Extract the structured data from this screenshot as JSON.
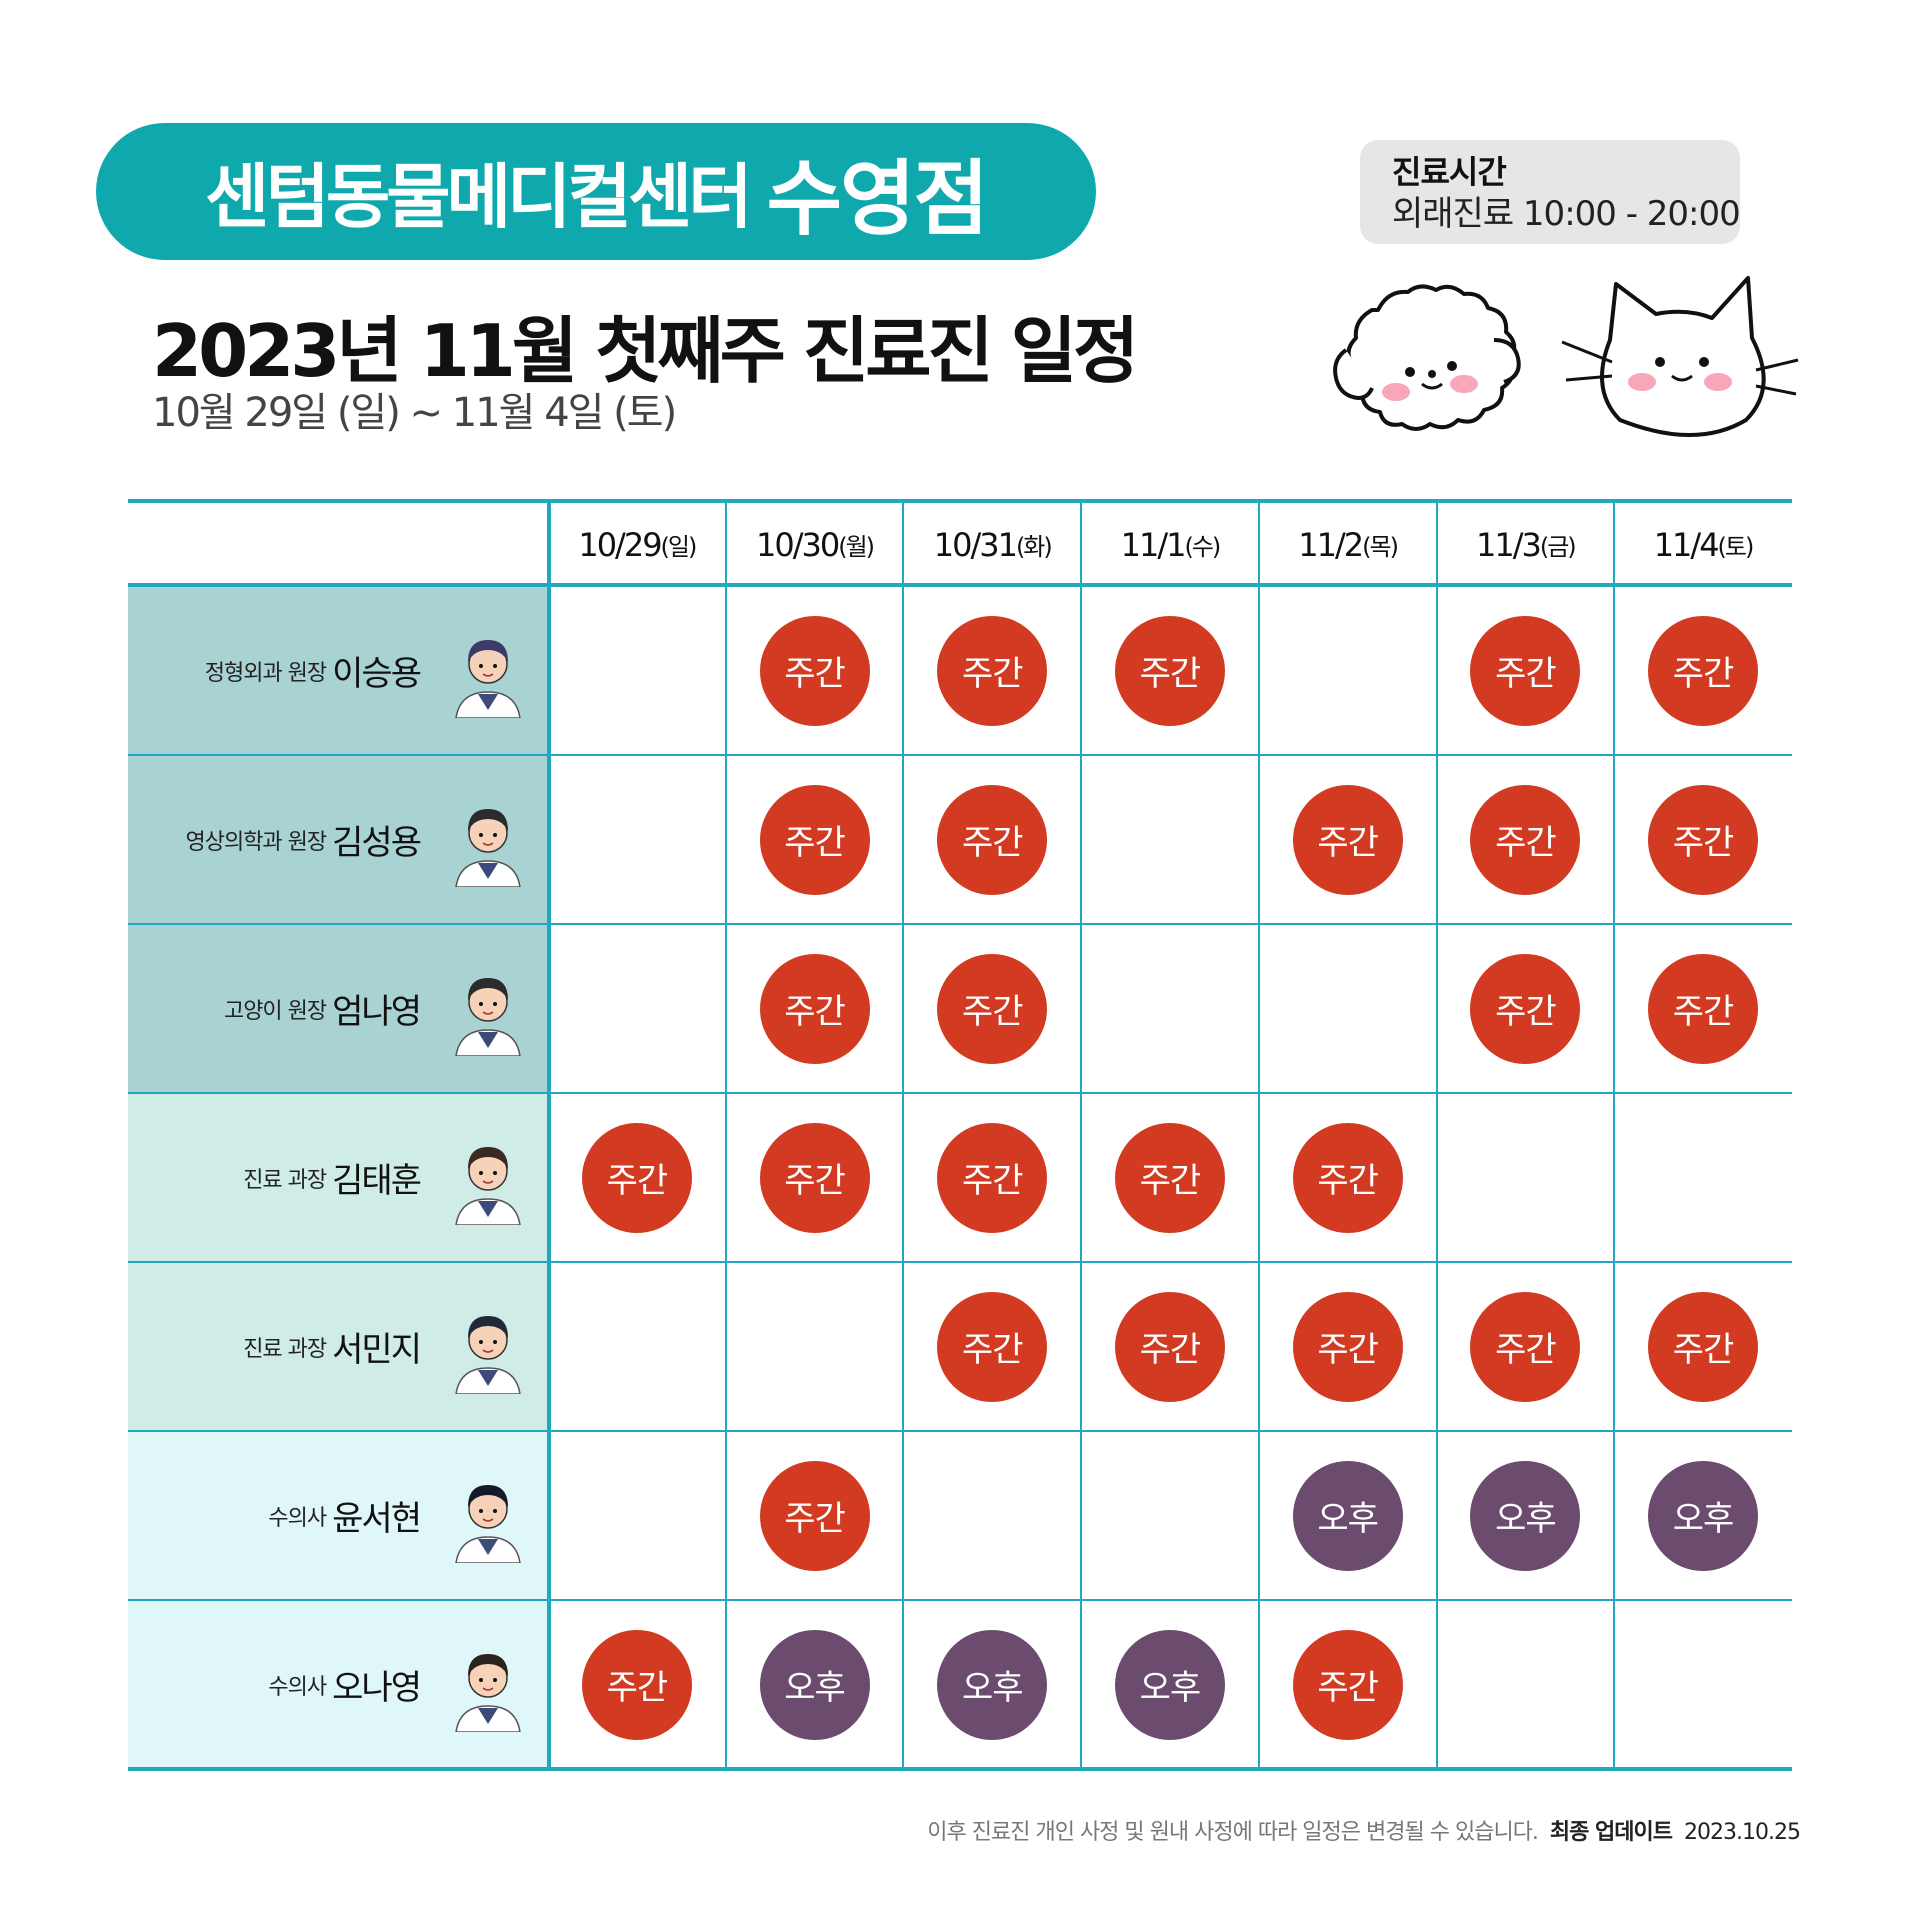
{
  "header": {
    "brand_name": "센텀동물메디컬센터",
    "branch": "수영점",
    "title": "2023년 11월 첫째주 진료진 일정",
    "subtitle": "10월 29일 (일) ~ 11월 4일 (토)"
  },
  "hours": {
    "title": "진료시간",
    "line": "외래진료 10:00 - 20:00"
  },
  "table": {
    "dates": [
      {
        "date": "10/29",
        "dow": "(일)"
      },
      {
        "date": "10/30",
        "dow": "(월)"
      },
      {
        "date": "10/31",
        "dow": "(화)"
      },
      {
        "date": "11/1",
        "dow": "(수)"
      },
      {
        "date": "11/2",
        "dow": "(목)"
      },
      {
        "date": "11/3",
        "dow": "(금)"
      },
      {
        "date": "11/4",
        "dow": "(토)"
      }
    ],
    "rows": [
      {
        "role": "정형외과 원장",
        "name": "이승용",
        "bg": "#a9d2d3",
        "avatar": "male-glasses",
        "cells": [
          "",
          "주간",
          "주간",
          "주간",
          "",
          "주간",
          "주간"
        ]
      },
      {
        "role": "영상의학과 원장",
        "name": "김성용",
        "bg": "#a9d2d3",
        "avatar": "male-dark",
        "cells": [
          "",
          "주간",
          "주간",
          "",
          "주간",
          "주간",
          "주간"
        ]
      },
      {
        "role": "고양이 원장",
        "name": "엄나영",
        "bg": "#a9d2d3",
        "avatar": "female-bun",
        "cells": [
          "",
          "주간",
          "주간",
          "",
          "",
          "주간",
          "주간"
        ]
      },
      {
        "role": "진료 과장",
        "name": "김태훈",
        "bg": "#cfece6",
        "avatar": "male-short",
        "cells": [
          "주간",
          "주간",
          "주간",
          "주간",
          "주간",
          "",
          ""
        ]
      },
      {
        "role": "진료 과장",
        "name": "서민지",
        "bg": "#cfece6",
        "avatar": "female-long",
        "cells": [
          "",
          "",
          "주간",
          "주간",
          "주간",
          "주간",
          "주간"
        ]
      },
      {
        "role": "수의사",
        "name": "윤서현",
        "bg": "#e0f7f9",
        "avatar": "female-long2",
        "cells": [
          "",
          "주간",
          "",
          "",
          "오후",
          "오후",
          "오후"
        ]
      },
      {
        "role": "수의사",
        "name": "오나영",
        "bg": "#e0f7f9",
        "avatar": "female-wavy",
        "cells": [
          "주간",
          "오후",
          "오후",
          "오후",
          "주간",
          "",
          ""
        ]
      }
    ]
  },
  "colors": {
    "teal": "#0fa9ad",
    "line": "#20a8c0",
    "day": "#d23a22",
    "pm": "#6b4b6e"
  },
  "footer": {
    "note": "이후 진료진 개인 사정 및 원내 사정에 따라 일정은 변경될 수 있습니다.",
    "update_label": "최종 업데이트",
    "update_date": "2023.10.25"
  }
}
